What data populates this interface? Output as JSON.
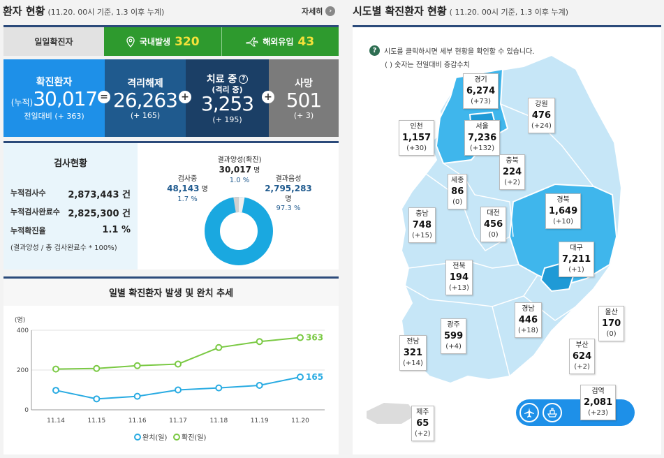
{
  "left": {
    "title": "환자 현황",
    "subtitle": "(11.20. 00시 기준, 1.3 이후 누계)",
    "more": "자세히",
    "daily": {
      "label": "일일확진자",
      "domestic_label": "국내발생",
      "domestic_value": "320",
      "overseas_label": "해외유입",
      "overseas_value": "43"
    },
    "stats": {
      "confirmed": {
        "title": "확진환자",
        "prefix": "(누적)",
        "value": "30,017",
        "delta": "전일대비 (+ 363)"
      },
      "released": {
        "title": "격리해제",
        "value": "26,263",
        "delta": "(+ 165)"
      },
      "treatment": {
        "title": "치료 중",
        "subtitle": "(격리 중)",
        "value": "3,253",
        "delta": "(+ 195)"
      },
      "deaths": {
        "title": "사망",
        "value": "501",
        "delta": "(+ 3)"
      }
    },
    "tests": {
      "title": "검사현황",
      "rows": [
        {
          "label": "누적검사수",
          "value": "2,873,443 건"
        },
        {
          "label": "누적검사완료수",
          "value": "2,825,300 건"
        },
        {
          "label": "누적확진율",
          "value": "1.1 %"
        }
      ],
      "note": "(결과양성 / 총 검사완료수 * 100%)",
      "donut": {
        "positive_label": "결과양성(확진)",
        "positive_value": "30,017",
        "positive_unit": "명",
        "positive_pct": "1.0 %",
        "testing_label": "검사중",
        "testing_value": "48,143",
        "testing_unit": "명",
        "testing_pct": "1.7 %",
        "negative_label": "결과음성",
        "negative_value": "2,795,283",
        "negative_unit": "명",
        "negative_pct": "97.3 %"
      }
    },
    "trend_title": "일별 확진환자 발생 및 완치 추세",
    "legend": {
      "released": "완치(일)",
      "confirmed": "확진(일)"
    }
  },
  "right": {
    "title": "시도별 확진환자 현황",
    "subtitle": "( 11.20. 00시 기준, 1.3 이후 누계)",
    "help_line1": "시도를 클릭하시면 세부 현황을 확인할 수 있습니다.",
    "help_line2": "( ) 숫자는 전일대비 증감수치",
    "regions": [
      {
        "name": "경기",
        "value": "6,274",
        "delta": "(+73)"
      },
      {
        "name": "강원",
        "value": "476",
        "delta": "(+24)"
      },
      {
        "name": "인천",
        "value": "1,157",
        "delta": "(+30)"
      },
      {
        "name": "서울",
        "value": "7,236",
        "delta": "(+132)"
      },
      {
        "name": "충북",
        "value": "224",
        "delta": "(+2)"
      },
      {
        "name": "세종",
        "value": "86",
        "delta": "(0)"
      },
      {
        "name": "충남",
        "value": "748",
        "delta": "(+15)"
      },
      {
        "name": "대전",
        "value": "456",
        "delta": "(0)"
      },
      {
        "name": "경북",
        "value": "1,649",
        "delta": "(+10)"
      },
      {
        "name": "대구",
        "value": "7,211",
        "delta": "(+1)"
      },
      {
        "name": "전북",
        "value": "194",
        "delta": "(+13)"
      },
      {
        "name": "울산",
        "value": "170",
        "delta": "(0)"
      },
      {
        "name": "경남",
        "value": "446",
        "delta": "(+18)"
      },
      {
        "name": "광주",
        "value": "599",
        "delta": "(+4)"
      },
      {
        "name": "전남",
        "value": "321",
        "delta": "(+14)"
      },
      {
        "name": "부산",
        "value": "624",
        "delta": "(+2)"
      },
      {
        "name": "검역",
        "value": "2,081",
        "delta": "(+23)"
      },
      {
        "name": "제주",
        "value": "65",
        "delta": "(+2)"
      }
    ]
  },
  "chart_data": {
    "type": "line",
    "title": "일별 확진환자 발생 및 완치 추세",
    "ylabel": "(명)",
    "ylim": [
      0,
      400
    ],
    "yticks": [
      "0",
      "200",
      "400"
    ],
    "categories": [
      "11.14",
      "11.15",
      "11.16",
      "11.17",
      "11.18",
      "11.19",
      "11.20"
    ],
    "series": [
      {
        "name": "확진(일)",
        "color": "#7ac943",
        "values": [
          205,
          208,
          222,
          230,
          313,
          343,
          363
        ]
      },
      {
        "name": "완치(일)",
        "color": "#29abe2",
        "values": [
          98,
          55,
          68,
          100,
          110,
          123,
          165
        ]
      }
    ],
    "last_labels": [
      "363",
      "165"
    ],
    "legend": "bottom"
  },
  "colors": {
    "navy": "#2b4a7a",
    "green": "#2e9a2e",
    "blue": "#1e90e8",
    "darkblue": "#1f5a8e",
    "gray": "#7b7b7b"
  }
}
